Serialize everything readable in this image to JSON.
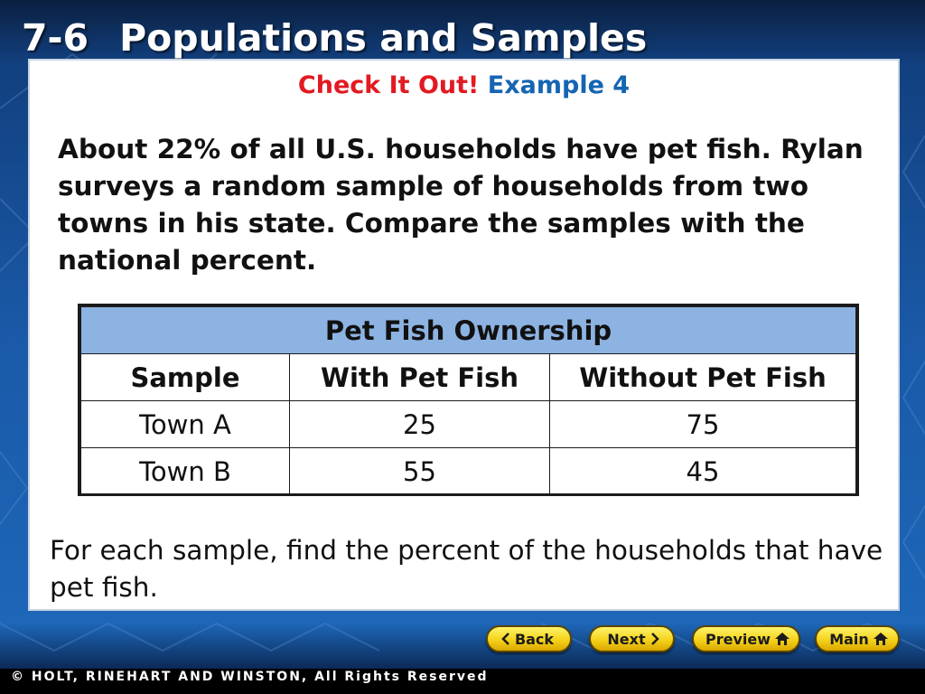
{
  "header": {
    "lesson_number": "7-6",
    "lesson_title": "Populations and Samples"
  },
  "subtitle": {
    "part1": "Check It Out!",
    "part2": "Example 4"
  },
  "problem_text": "About 22% of all U.S. households have pet fish. Rylan surveys a random sample of households from two towns in his state. Compare the samples with the national percent.",
  "table": {
    "caption": "Pet Fish Ownership",
    "headers": [
      "Sample",
      "With Pet Fish",
      "Without Pet Fish"
    ],
    "rows": [
      [
        "Town A",
        "25",
        "75"
      ],
      [
        "Town B",
        "55",
        "45"
      ]
    ]
  },
  "note_text": "For each sample, find the percent of the households that have pet fish.",
  "nav": {
    "back": "Back",
    "next": "Next",
    "preview": "Preview",
    "main": "Main"
  },
  "footer": "© HOLT, RINEHART AND WINSTON, All Rights Reserved",
  "colors": {
    "accent_red": "#e21a22",
    "accent_blue": "#1565b3",
    "table_header": "#8db3e2",
    "button_yellow": "#f5d21a"
  },
  "icons": {
    "back": "chevron-left-icon",
    "next": "chevron-right-icon",
    "preview": "home-icon",
    "main": "home-icon"
  }
}
